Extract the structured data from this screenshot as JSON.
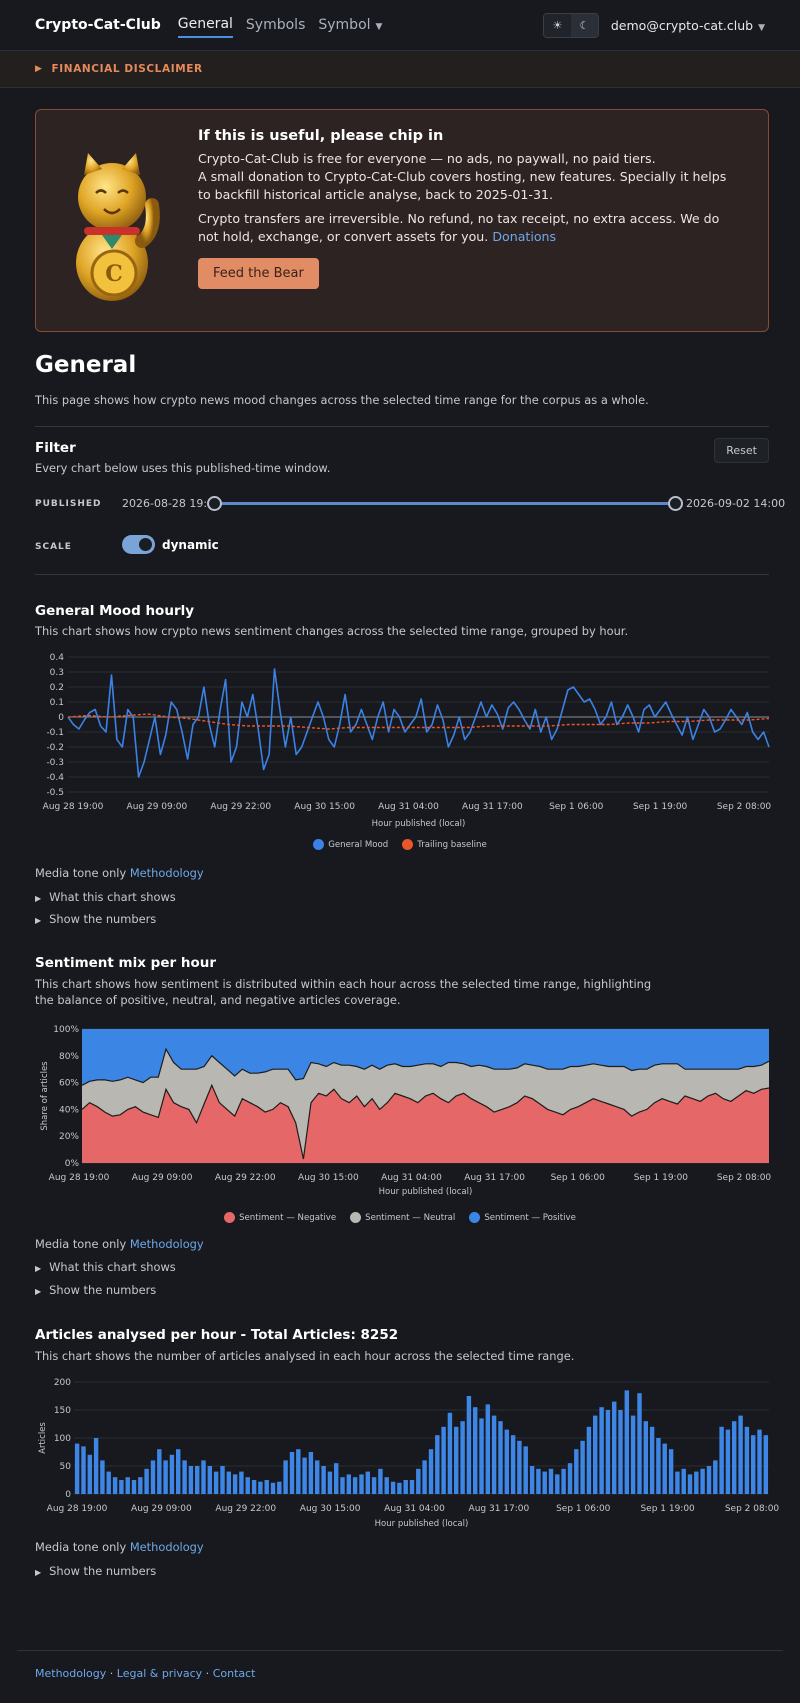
{
  "nav": {
    "brand": "Crypto-Cat-Club",
    "links": [
      "General",
      "Symbols",
      "Symbol"
    ],
    "theme_light_icon": "☀",
    "theme_dark_icon": "☾",
    "user": "demo@crypto-cat.club"
  },
  "disclaimer": {
    "label": "FINANCIAL DISCLAIMER"
  },
  "donate": {
    "title": "If this is useful, please chip in",
    "p1_line1": "Crypto-Cat-Club is free for everyone — no ads, no paywall, no paid tiers.",
    "p1_line2": "A small donation to Crypto-Cat-Club covers hosting, new features. Specially it helps to backfill historical article analyse, back to 2025-01-31.",
    "p2": "Crypto transfers are irreversible. No refund, no tax receipt, no extra access. We do not hold, exchange, or convert assets for you.",
    "p2_link": "Donations",
    "button": "Feed the Bear"
  },
  "page": {
    "title": "General",
    "intro": "This page shows how crypto news mood changes across the selected time range for the corpus as a whole."
  },
  "filter": {
    "title": "Filter",
    "desc": "Every chart below uses this published-time window.",
    "reset": "Reset",
    "published_label": "PUBLISHED",
    "start": "2026-08-28 19:00",
    "end": "2026-09-02 14:00",
    "scale_label": "SCALE",
    "scale_value": "dynamic",
    "scale_on": true
  },
  "common": {
    "media_tone": "Media tone only",
    "methodology": "Methodology",
    "what_shows": "What this chart shows",
    "show_numbers": "Show the numbers",
    "x_title": "Hour published (local)"
  },
  "chart1": {
    "title": "General Mood hourly",
    "desc": "This chart shows how crypto news sentiment changes across the selected time range, grouped by hour.",
    "legend": [
      "General Mood",
      "Trailing baseline"
    ]
  },
  "chart2": {
    "title": "Sentiment mix per hour",
    "desc_line1": "This chart shows how sentiment is distributed within each hour across the selected time range, highlighting",
    "desc_line2": "the balance of positive, neutral, and negative articles coverage.",
    "y_title": "Share of articles",
    "legend": [
      "Sentiment — Negative",
      "Sentiment — Neutral",
      "Sentiment — Positive"
    ]
  },
  "chart3": {
    "title": "Articles analysed per hour - Total Articles: 8252",
    "desc": "This chart shows the number of articles analysed in each hour across the selected time range.",
    "y_title": "Articles"
  },
  "footer": {
    "links": [
      "Methodology",
      "Legal & privacy",
      "Contact"
    ],
    "sep": " · "
  },
  "colors": {
    "mood": "#3b82e6",
    "baseline": "#e8562a",
    "negative": "#e56767",
    "neutral": "#b9b7b1",
    "positive": "#3b86e4",
    "bars": "#3e86e6"
  },
  "chart_data": [
    {
      "type": "line",
      "title": "General Mood hourly",
      "xlabel": "Hour published (local)",
      "ylabel": "",
      "x_ticks": [
        "Aug 28 19:00",
        "Aug 29 09:00",
        "Aug 29 22:00",
        "Aug 30 15:00",
        "Aug 31 04:00",
        "Aug 31 17:00",
        "Sep 1 06:00",
        "Sep 1 19:00",
        "Sep 2 08:00"
      ],
      "y_ticks": [
        0.4,
        0.3,
        0.2,
        0.1,
        0,
        -0.1,
        -0.2,
        -0.3,
        -0.4,
        -0.5
      ],
      "ylim": [
        -0.5,
        0.4
      ],
      "legend_position": "bottom",
      "series": [
        {
          "name": "General Mood",
          "values": [
            0.0,
            -0.05,
            -0.08,
            -0.02,
            0.03,
            0.05,
            -0.06,
            -0.1,
            0.28,
            -0.15,
            -0.2,
            0.05,
            0.0,
            -0.4,
            -0.3,
            -0.15,
            0.0,
            -0.25,
            -0.12,
            0.1,
            0.05,
            -0.1,
            -0.28,
            -0.05,
            0.0,
            0.2,
            -0.05,
            -0.2,
            0.05,
            0.25,
            -0.3,
            -0.2,
            0.1,
            0.0,
            0.15,
            -0.08,
            -0.35,
            -0.25,
            0.32,
            0.05,
            -0.2,
            0.0,
            -0.25,
            -0.2,
            -0.1,
            0.0,
            0.1,
            0.0,
            -0.15,
            -0.2,
            -0.05,
            0.15,
            -0.1,
            -0.05,
            0.05,
            -0.05,
            -0.15,
            0.0,
            0.1,
            -0.1,
            0.05,
            0.0,
            -0.1,
            -0.05,
            0.0,
            0.12,
            -0.1,
            -0.05,
            0.08,
            -0.02,
            -0.2,
            -0.12,
            0.0,
            -0.15,
            -0.1,
            0.0,
            0.1,
            0.0,
            0.08,
            0.02,
            -0.08,
            0.06,
            0.1,
            0.05,
            -0.02,
            -0.08,
            0.05,
            -0.1,
            0.0,
            -0.15,
            -0.08,
            0.05,
            0.18,
            0.2,
            0.15,
            0.1,
            0.12,
            0.05,
            -0.05,
            0.0,
            0.1,
            -0.05,
            0.0,
            0.08,
            0.0,
            -0.1,
            0.05,
            0.08,
            0.0,
            0.05,
            0.1,
            0.02,
            -0.05,
            -0.12,
            0.0,
            -0.15,
            -0.05,
            0.05,
            0.0,
            -0.1,
            -0.08,
            -0.02,
            0.05,
            0.0,
            -0.05,
            0.03,
            -0.1,
            -0.15,
            -0.1,
            -0.2
          ]
        },
        {
          "name": "Trailing baseline",
          "values": [
            0.0,
            0.01,
            0.0,
            0.01,
            0.02,
            0.0,
            -0.01,
            -0.03,
            -0.05,
            -0.06,
            -0.06,
            -0.06,
            -0.07,
            -0.08,
            -0.07,
            -0.07,
            -0.07,
            -0.07,
            -0.07,
            -0.07,
            -0.07,
            -0.06,
            -0.06,
            -0.06,
            -0.06,
            -0.05,
            -0.05,
            -0.05,
            -0.04,
            -0.04,
            -0.03,
            -0.03,
            -0.02,
            -0.02,
            -0.02,
            -0.01
          ]
        }
      ]
    },
    {
      "type": "area",
      "stacked": true,
      "title": "Sentiment mix per hour",
      "xlabel": "Hour published (local)",
      "ylabel": "Share of articles",
      "x_ticks": [
        "Aug 28 19:00",
        "Aug 29 09:00",
        "Aug 29 22:00",
        "Aug 30 15:00",
        "Aug 31 04:00",
        "Aug 31 17:00",
        "Sep 1 06:00",
        "Sep 1 19:00",
        "Sep 2 08:00"
      ],
      "y_ticks": [
        "100%",
        "80%",
        "60%",
        "40%",
        "20%",
        "0%"
      ],
      "ylim": [
        0,
        100
      ],
      "legend_position": "bottom",
      "series": [
        {
          "name": "Sentiment — Negative",
          "values": [
            40,
            45,
            42,
            38,
            35,
            36,
            40,
            42,
            38,
            36,
            34,
            55,
            45,
            42,
            40,
            30,
            44,
            58,
            45,
            40,
            35,
            48,
            45,
            42,
            38,
            40,
            45,
            42,
            30,
            3,
            45,
            52,
            50,
            55,
            48,
            45,
            50,
            42,
            48,
            40,
            45,
            52,
            50,
            48,
            45,
            50,
            52,
            48,
            45,
            50,
            52,
            48,
            45,
            42,
            38,
            40,
            42,
            45,
            50,
            48,
            44,
            40,
            38,
            36,
            40,
            42,
            45,
            48,
            46,
            44,
            42,
            40,
            35,
            38,
            40,
            45,
            48,
            46,
            44,
            50,
            48,
            46,
            50,
            52,
            48,
            46,
            50,
            54,
            52,
            55,
            56
          ]
        },
        {
          "name": "Sentiment — Neutral",
          "values": [
            18,
            16,
            20,
            24,
            26,
            26,
            24,
            20,
            22,
            28,
            30,
            30,
            30,
            28,
            30,
            40,
            28,
            22,
            30,
            30,
            30,
            22,
            22,
            25,
            30,
            30,
            25,
            28,
            32,
            60,
            30,
            22,
            22,
            20,
            25,
            28,
            22,
            28,
            25,
            30,
            28,
            22,
            22,
            24,
            28,
            24,
            22,
            24,
            30,
            25,
            22,
            24,
            28,
            30,
            32,
            30,
            28,
            26,
            24,
            25,
            28,
            30,
            32,
            34,
            32,
            30,
            28,
            26,
            27,
            28,
            30,
            32,
            34,
            32,
            30,
            28,
            26,
            28,
            30,
            20,
            22,
            24,
            20,
            18,
            22,
            24,
            20,
            18,
            20,
            18,
            20
          ]
        },
        {
          "name": "Sentiment — Positive",
          "values": [
            42,
            39,
            38,
            38,
            39,
            38,
            36,
            38,
            40,
            36,
            36,
            15,
            25,
            30,
            30,
            30,
            28,
            20,
            25,
            30,
            35,
            30,
            33,
            33,
            32,
            30,
            30,
            30,
            38,
            37,
            25,
            26,
            28,
            25,
            27,
            27,
            28,
            30,
            27,
            30,
            27,
            26,
            28,
            28,
            27,
            26,
            26,
            28,
            25,
            25,
            26,
            28,
            27,
            28,
            30,
            30,
            30,
            29,
            26,
            27,
            28,
            30,
            30,
            30,
            28,
            28,
            27,
            26,
            27,
            28,
            28,
            28,
            31,
            30,
            30,
            27,
            26,
            26,
            26,
            30,
            30,
            30,
            30,
            30,
            30,
            30,
            30,
            28,
            28,
            27,
            24
          ]
        }
      ]
    },
    {
      "type": "bar",
      "title": "Articles analysed per hour - Total Articles: 8252",
      "total_articles": 8252,
      "xlabel": "Hour published (local)",
      "ylabel": "Articles",
      "x_ticks": [
        "Aug 28 19:00",
        "Aug 29 09:00",
        "Aug 29 22:00",
        "Aug 30 15:00",
        "Aug 31 04:00",
        "Aug 31 17:00",
        "Sep 1 06:00",
        "Sep 1 19:00",
        "Sep 2 08:00"
      ],
      "y_ticks": [
        200,
        150,
        100,
        50,
        0
      ],
      "ylim": [
        0,
        200
      ],
      "values": [
        90,
        85,
        70,
        100,
        60,
        40,
        30,
        25,
        30,
        25,
        30,
        45,
        60,
        80,
        60,
        70,
        80,
        60,
        50,
        50,
        60,
        50,
        40,
        50,
        40,
        35,
        40,
        30,
        25,
        22,
        25,
        20,
        22,
        60,
        75,
        80,
        65,
        75,
        60,
        50,
        40,
        55,
        30,
        35,
        30,
        35,
        40,
        30,
        45,
        30,
        22,
        20,
        25,
        25,
        45,
        60,
        80,
        105,
        120,
        145,
        120,
        130,
        175,
        155,
        135,
        160,
        140,
        130,
        115,
        105,
        95,
        85,
        50,
        45,
        40,
        45,
        35,
        45,
        55,
        80,
        95,
        120,
        140,
        155,
        150,
        165,
        150,
        185,
        140,
        180,
        130,
        120,
        100,
        90,
        80,
        40,
        45,
        35,
        40,
        45,
        50,
        60,
        120,
        115,
        130,
        140,
        120,
        105,
        115,
        105
      ]
    }
  ]
}
